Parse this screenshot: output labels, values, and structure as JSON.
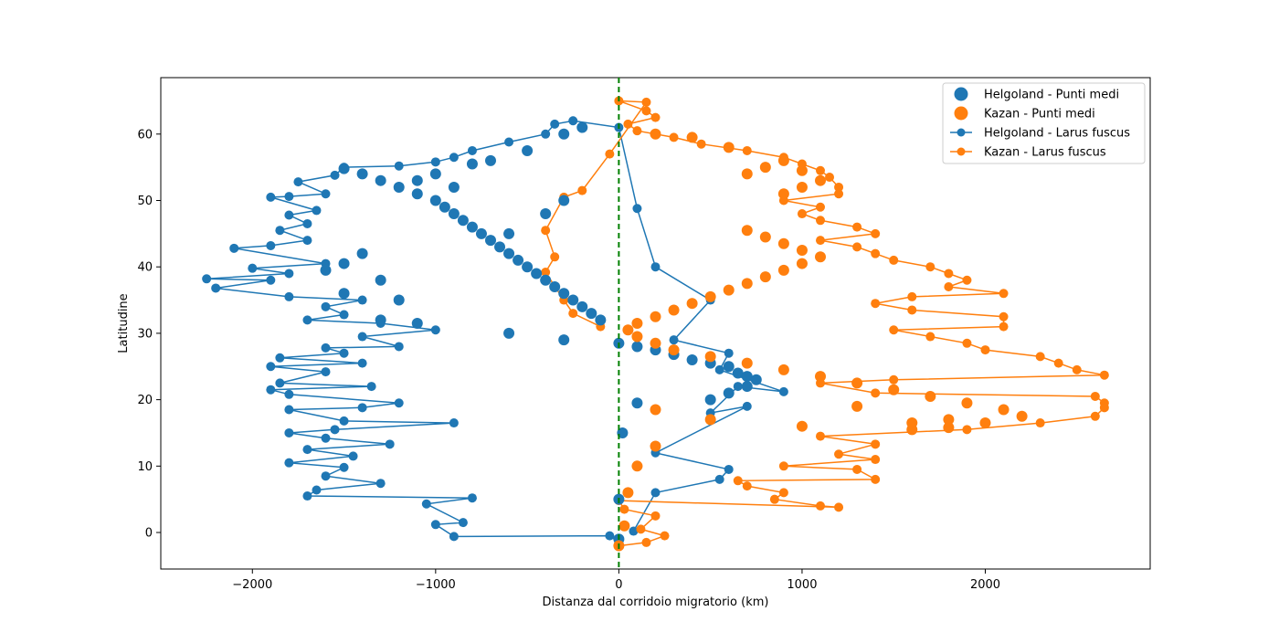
{
  "chart_data": {
    "type": "scatter",
    "title": "",
    "xlabel": "Distanza dal corridoio migratorio (km)",
    "ylabel": "Latitudine",
    "xlim": [
      -2500,
      2900
    ],
    "ylim": [
      -5.5,
      68.5
    ],
    "xticks": [
      -2000,
      -1000,
      0,
      1000,
      2000
    ],
    "xtick_labels": [
      "−2000",
      "−1000",
      "0",
      "1000",
      "2000"
    ],
    "yticks": [
      0,
      10,
      20,
      30,
      40,
      50,
      60
    ],
    "ytick_labels": [
      "0",
      "10",
      "20",
      "30",
      "40",
      "50",
      "60"
    ],
    "grid": false,
    "legend_position": "top-right",
    "reference_line": {
      "x": 0,
      "style": "dashed",
      "color": "#008000"
    },
    "legend": [
      {
        "label": "Helgoland - Punti medi",
        "marker": "circle",
        "color": "#1f77b4"
      },
      {
        "label": "Kazan - Punti medi",
        "marker": "circle",
        "color": "#ff7f0e"
      },
      {
        "label": "Helgoland - Larus fuscus",
        "marker": "line-circle",
        "color": "#1f77b4"
      },
      {
        "label": "Kazan - Larus fuscus",
        "marker": "line-circle",
        "color": "#ff7f0e"
      }
    ],
    "series": [
      {
        "name": "Helgoland - Larus fuscus",
        "color": "#1f77b4",
        "points": [
          [
            0,
            -1.5
          ],
          [
            -50,
            -0.5
          ],
          [
            -900,
            -0.6
          ],
          [
            -1000,
            1.2
          ],
          [
            -850,
            1.5
          ],
          [
            -1050,
            4.3
          ],
          [
            -800,
            5.2
          ],
          [
            -1700,
            5.5
          ],
          [
            -1650,
            6.4
          ],
          [
            -1300,
            7.4
          ],
          [
            -1600,
            8.5
          ],
          [
            -1500,
            9.8
          ],
          [
            -1800,
            10.5
          ],
          [
            -1450,
            11.5
          ],
          [
            -1700,
            12.5
          ],
          [
            -1250,
            13.3
          ],
          [
            -1600,
            14.2
          ],
          [
            -1800,
            15.0
          ],
          [
            -1550,
            15.5
          ],
          [
            -900,
            16.5
          ],
          [
            -1500,
            16.8
          ],
          [
            -1800,
            18.5
          ],
          [
            -1400,
            18.8
          ],
          [
            -1200,
            19.5
          ],
          [
            -1800,
            20.8
          ],
          [
            -1900,
            21.5
          ],
          [
            -1350,
            22.0
          ],
          [
            -1850,
            22.5
          ],
          [
            -1600,
            24.2
          ],
          [
            -1900,
            25.0
          ],
          [
            -1400,
            25.5
          ],
          [
            -1850,
            26.3
          ],
          [
            -1500,
            27.0
          ],
          [
            -1600,
            27.8
          ],
          [
            -1200,
            28.0
          ],
          [
            -1400,
            29.5
          ],
          [
            -1000,
            30.5
          ],
          [
            -1300,
            31.5
          ],
          [
            -1700,
            32.0
          ],
          [
            -1500,
            32.8
          ],
          [
            -1600,
            34.0
          ],
          [
            -1400,
            35.0
          ],
          [
            -1800,
            35.5
          ],
          [
            -2200,
            36.8
          ],
          [
            -1900,
            38.0
          ],
          [
            -2250,
            38.2
          ],
          [
            -1800,
            39.0
          ],
          [
            -2000,
            39.8
          ],
          [
            -1600,
            40.5
          ],
          [
            -2100,
            42.8
          ],
          [
            -1900,
            43.2
          ],
          [
            -1700,
            44.0
          ],
          [
            -1850,
            45.5
          ],
          [
            -1700,
            46.5
          ],
          [
            -1800,
            47.8
          ],
          [
            -1650,
            48.5
          ],
          [
            -1900,
            50.5
          ],
          [
            -1800,
            50.6
          ],
          [
            -1600,
            51.0
          ],
          [
            -1750,
            52.8
          ],
          [
            -1550,
            53.8
          ],
          [
            -1500,
            55.0
          ],
          [
            -1200,
            55.2
          ],
          [
            -1000,
            55.8
          ],
          [
            -900,
            56.5
          ],
          [
            -800,
            57.5
          ],
          [
            -600,
            58.8
          ],
          [
            -400,
            60.0
          ],
          [
            -350,
            61.5
          ],
          [
            -250,
            62.0
          ],
          [
            0,
            61.0
          ],
          [
            100,
            48.8
          ],
          [
            200,
            40.0
          ],
          [
            500,
            35.0
          ],
          [
            300,
            29.0
          ],
          [
            600,
            27.0
          ],
          [
            550,
            24.5
          ],
          [
            900,
            21.2
          ],
          [
            650,
            22.0
          ],
          [
            500,
            18.0
          ],
          [
            700,
            19.0
          ],
          [
            200,
            12.0
          ],
          [
            600,
            9.5
          ],
          [
            550,
            8.0
          ],
          [
            200,
            6.0
          ],
          [
            80,
            0.2
          ]
        ]
      },
      {
        "name": "Kazan - Larus fuscus",
        "color": "#ff7f0e",
        "points": [
          [
            0,
            -2.0
          ],
          [
            150,
            -1.5
          ],
          [
            250,
            -0.5
          ],
          [
            120,
            0.5
          ],
          [
            200,
            2.5
          ],
          [
            30,
            3.5
          ],
          [
            0,
            4.8
          ],
          [
            1200,
            3.8
          ],
          [
            1100,
            4.0
          ],
          [
            850,
            5.0
          ],
          [
            900,
            6.0
          ],
          [
            700,
            7.0
          ],
          [
            650,
            7.8
          ],
          [
            1400,
            8.0
          ],
          [
            1300,
            9.5
          ],
          [
            900,
            10.0
          ],
          [
            1400,
            11.0
          ],
          [
            1200,
            11.8
          ],
          [
            1400,
            13.3
          ],
          [
            1100,
            14.5
          ],
          [
            1900,
            15.5
          ],
          [
            2300,
            16.5
          ],
          [
            2600,
            17.5
          ],
          [
            2650,
            18.8
          ],
          [
            2650,
            19.5
          ],
          [
            2600,
            20.5
          ],
          [
            1400,
            21.0
          ],
          [
            1100,
            22.5
          ],
          [
            1500,
            23.0
          ],
          [
            2650,
            23.7
          ],
          [
            2500,
            24.5
          ],
          [
            2400,
            25.5
          ],
          [
            2300,
            26.5
          ],
          [
            2000,
            27.5
          ],
          [
            1900,
            28.5
          ],
          [
            1700,
            29.5
          ],
          [
            1500,
            30.5
          ],
          [
            2100,
            31.0
          ],
          [
            2100,
            32.5
          ],
          [
            1600,
            33.5
          ],
          [
            1400,
            34.5
          ],
          [
            1600,
            35.5
          ],
          [
            2100,
            36.0
          ],
          [
            1800,
            37.0
          ],
          [
            1900,
            38.0
          ],
          [
            1800,
            39.0
          ],
          [
            1700,
            40.0
          ],
          [
            1500,
            41.0
          ],
          [
            1400,
            42.0
          ],
          [
            1300,
            43.0
          ],
          [
            1100,
            44.0
          ],
          [
            1400,
            45.0
          ],
          [
            1300,
            46.0
          ],
          [
            1100,
            47.0
          ],
          [
            1000,
            48.0
          ],
          [
            1100,
            49.0
          ],
          [
            900,
            50.0
          ],
          [
            1200,
            51.0
          ],
          [
            1200,
            52.0
          ],
          [
            1150,
            53.5
          ],
          [
            1100,
            54.5
          ],
          [
            1000,
            55.5
          ],
          [
            900,
            56.5
          ],
          [
            700,
            57.5
          ],
          [
            450,
            58.5
          ],
          [
            300,
            59.5
          ],
          [
            100,
            60.5
          ],
          [
            50,
            61.5
          ],
          [
            200,
            62.5
          ],
          [
            150,
            63.5
          ],
          [
            0,
            65.0
          ],
          [
            150,
            64.8
          ],
          [
            -50,
            57.0
          ],
          [
            -200,
            51.5
          ],
          [
            -300,
            50.5
          ],
          [
            -400,
            45.5
          ],
          [
            -350,
            41.5
          ],
          [
            -400,
            39.2
          ],
          [
            -300,
            35.0
          ],
          [
            -250,
            33.0
          ],
          [
            -100,
            31.0
          ]
        ]
      },
      {
        "name": "Helgoland - Punti medi",
        "color": "#1f77b4",
        "points": [
          [
            -1500,
            54.8
          ],
          [
            -1400,
            54.0
          ],
          [
            -1300,
            53.0
          ],
          [
            -1200,
            52.0
          ],
          [
            -1100,
            51.0
          ],
          [
            -1000,
            50.0
          ],
          [
            -950,
            49.0
          ],
          [
            -900,
            48.0
          ],
          [
            -850,
            47.0
          ],
          [
            -800,
            46.0
          ],
          [
            -750,
            45.0
          ],
          [
            -700,
            44.0
          ],
          [
            -650,
            43.0
          ],
          [
            -600,
            42.0
          ],
          [
            -550,
            41.0
          ],
          [
            -500,
            40.0
          ],
          [
            -450,
            39.0
          ],
          [
            -400,
            38.0
          ],
          [
            -350,
            37.0
          ],
          [
            -300,
            36.0
          ],
          [
            -250,
            35.0
          ],
          [
            -200,
            34.0
          ],
          [
            -150,
            33.0
          ],
          [
            -100,
            32.0
          ],
          [
            -800,
            55.5
          ],
          [
            -700,
            56.0
          ],
          [
            -500,
            57.5
          ],
          [
            -300,
            60.0
          ],
          [
            -200,
            61.0
          ],
          [
            -1400,
            42.0
          ],
          [
            -1500,
            40.5
          ],
          [
            -1600,
            39.5
          ],
          [
            -1300,
            38.0
          ],
          [
            -1500,
            36.0
          ],
          [
            -1200,
            35.0
          ],
          [
            -1300,
            32.0
          ],
          [
            -1100,
            31.5
          ],
          [
            -600,
            30.0
          ],
          [
            -300,
            29.0
          ],
          [
            0,
            28.5
          ],
          [
            100,
            28.0
          ],
          [
            200,
            27.5
          ],
          [
            300,
            26.8
          ],
          [
            400,
            26.0
          ],
          [
            500,
            25.5
          ],
          [
            600,
            25.0
          ],
          [
            650,
            24.0
          ],
          [
            700,
            23.5
          ],
          [
            750,
            23.0
          ],
          [
            700,
            22.0
          ],
          [
            600,
            21.0
          ],
          [
            500,
            20.0
          ],
          [
            100,
            19.5
          ],
          [
            20,
            15.0
          ],
          [
            0,
            5.0
          ],
          [
            0,
            -1.0
          ],
          [
            -600,
            45.0
          ],
          [
            -400,
            48.0
          ],
          [
            -300,
            50.0
          ],
          [
            -900,
            52.0
          ],
          [
            -1100,
            53.0
          ],
          [
            -1000,
            54.0
          ]
        ]
      },
      {
        "name": "Kazan - Punti medi",
        "color": "#ff7f0e",
        "points": [
          [
            700,
            45.5
          ],
          [
            800,
            44.5
          ],
          [
            900,
            43.5
          ],
          [
            1000,
            42.5
          ],
          [
            1100,
            41.5
          ],
          [
            1000,
            40.5
          ],
          [
            900,
            39.5
          ],
          [
            800,
            38.5
          ],
          [
            700,
            37.5
          ],
          [
            600,
            36.5
          ],
          [
            500,
            35.5
          ],
          [
            400,
            34.5
          ],
          [
            300,
            33.5
          ],
          [
            200,
            32.5
          ],
          [
            100,
            31.5
          ],
          [
            50,
            30.5
          ],
          [
            100,
            29.5
          ],
          [
            200,
            28.5
          ],
          [
            300,
            27.5
          ],
          [
            500,
            26.5
          ],
          [
            700,
            25.5
          ],
          [
            900,
            24.5
          ],
          [
            1100,
            23.5
          ],
          [
            1300,
            22.5
          ],
          [
            1500,
            21.5
          ],
          [
            1700,
            20.5
          ],
          [
            1900,
            19.5
          ],
          [
            2100,
            18.5
          ],
          [
            2200,
            17.5
          ],
          [
            2000,
            16.5
          ],
          [
            1800,
            15.8
          ],
          [
            1600,
            15.5
          ],
          [
            1000,
            16.0
          ],
          [
            500,
            17.0
          ],
          [
            200,
            18.5
          ],
          [
            700,
            54.0
          ],
          [
            800,
            55.0
          ],
          [
            900,
            56.0
          ],
          [
            1000,
            54.5
          ],
          [
            1100,
            53.0
          ],
          [
            1000,
            52.0
          ],
          [
            900,
            51.0
          ],
          [
            600,
            58.0
          ],
          [
            400,
            59.5
          ],
          [
            200,
            60.0
          ],
          [
            1600,
            16.5
          ],
          [
            1800,
            17.0
          ],
          [
            1300,
            19.0
          ],
          [
            200,
            13.0
          ],
          [
            100,
            10.0
          ],
          [
            50,
            6.0
          ],
          [
            30,
            1.0
          ],
          [
            0,
            -2.0
          ]
        ]
      }
    ]
  }
}
